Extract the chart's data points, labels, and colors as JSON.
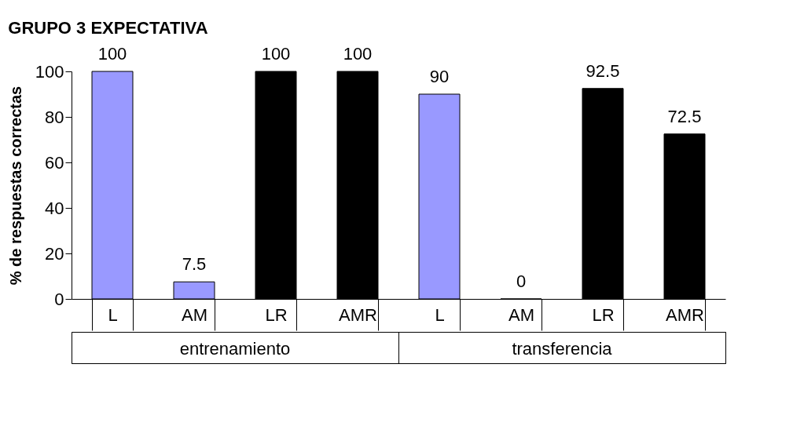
{
  "chart_data": {
    "type": "bar",
    "title": "GRUPO 3 EXPECTATIVA",
    "ylabel": "% de respuestas correctas",
    "categories": [
      "L",
      "AM",
      "LR",
      "AMR",
      "L",
      "AM",
      "LR",
      "AMR"
    ],
    "values": [
      100,
      7.5,
      100,
      100,
      90,
      0,
      92.5,
      72.5
    ],
    "colors": [
      "#9999ff",
      "#9999ff",
      "#000000",
      "#000000",
      "#9999ff",
      "#9999ff",
      "#000000",
      "#000000"
    ],
    "ylim": [
      0,
      100
    ],
    "yticks": [
      0,
      20,
      40,
      60,
      80,
      100
    ],
    "data_labels": true,
    "grid": false,
    "legend": false,
    "annotations": [
      "entrenamiento",
      "transferencia"
    ]
  }
}
